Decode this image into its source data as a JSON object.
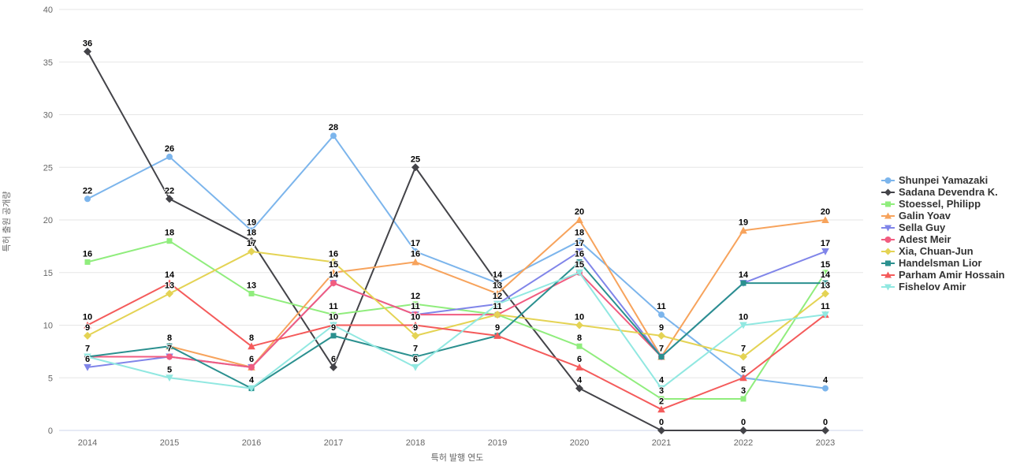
{
  "chart_data": {
    "type": "line",
    "title": "",
    "xlabel": "특허 발행 연도",
    "ylabel": "특허 출원 공개량",
    "x": [
      2014,
      2015,
      2016,
      2017,
      2018,
      2019,
      2020,
      2021,
      2022,
      2023
    ],
    "ylim": [
      0,
      40
    ],
    "ytick_step": 5,
    "grid": true,
    "legend_position": "right",
    "colors": {
      "grid": "#e6e6e6",
      "axis_line": "#ccd6eb",
      "tick_label": "#666666",
      "data_label": "#000000",
      "legend_text": "#333333"
    },
    "series": [
      {
        "name": "Shunpei Yamazaki",
        "color": "#7cb5ec",
        "marker": "circle",
        "values": [
          22,
          26,
          19,
          28,
          17,
          14,
          18,
          11,
          5,
          4
        ]
      },
      {
        "name": "Sadana Devendra K.",
        "color": "#434348",
        "marker": "diamond",
        "values": [
          36,
          22,
          18,
          6,
          25,
          14,
          4,
          0,
          0,
          0
        ]
      },
      {
        "name": "Stoessel, Philipp",
        "color": "#90ed7d",
        "marker": "square",
        "values": [
          16,
          18,
          13,
          11,
          12,
          11,
          8,
          3,
          3,
          15
        ]
      },
      {
        "name": "Galin Yoav",
        "color": "#f7a35c",
        "marker": "triangle",
        "values": [
          null,
          8,
          6,
          15,
          16,
          13,
          20,
          7,
          19,
          20
        ]
      },
      {
        "name": "Sella Guy",
        "color": "#8085e9",
        "marker": "triangle-down",
        "values": [
          6,
          7,
          6,
          14,
          11,
          12,
          17,
          7,
          14,
          17
        ]
      },
      {
        "name": "Adest Meir",
        "color": "#f15c80",
        "marker": "circle",
        "values": [
          7,
          7,
          6,
          14,
          11,
          11,
          15,
          7,
          null,
          null
        ]
      },
      {
        "name": "Xia, Chuan-Jun",
        "color": "#e4d354",
        "marker": "diamond",
        "values": [
          9,
          13,
          17,
          16,
          9,
          11,
          10,
          9,
          7,
          13
        ]
      },
      {
        "name": "Handelsman Lior",
        "color": "#2b908f",
        "marker": "square",
        "values": [
          7,
          8,
          4,
          9,
          7,
          9,
          16,
          7,
          14,
          14
        ]
      },
      {
        "name": "Parham Amir Hossain",
        "color": "#f45b5b",
        "marker": "triangle",
        "values": [
          10,
          14,
          8,
          10,
          10,
          9,
          6,
          2,
          5,
          11
        ]
      },
      {
        "name": "Fishelov Amir",
        "color": "#91e8e1",
        "marker": "triangle-down",
        "values": [
          7,
          5,
          4,
          10,
          6,
          12,
          15,
          4,
          10,
          11
        ]
      }
    ]
  }
}
